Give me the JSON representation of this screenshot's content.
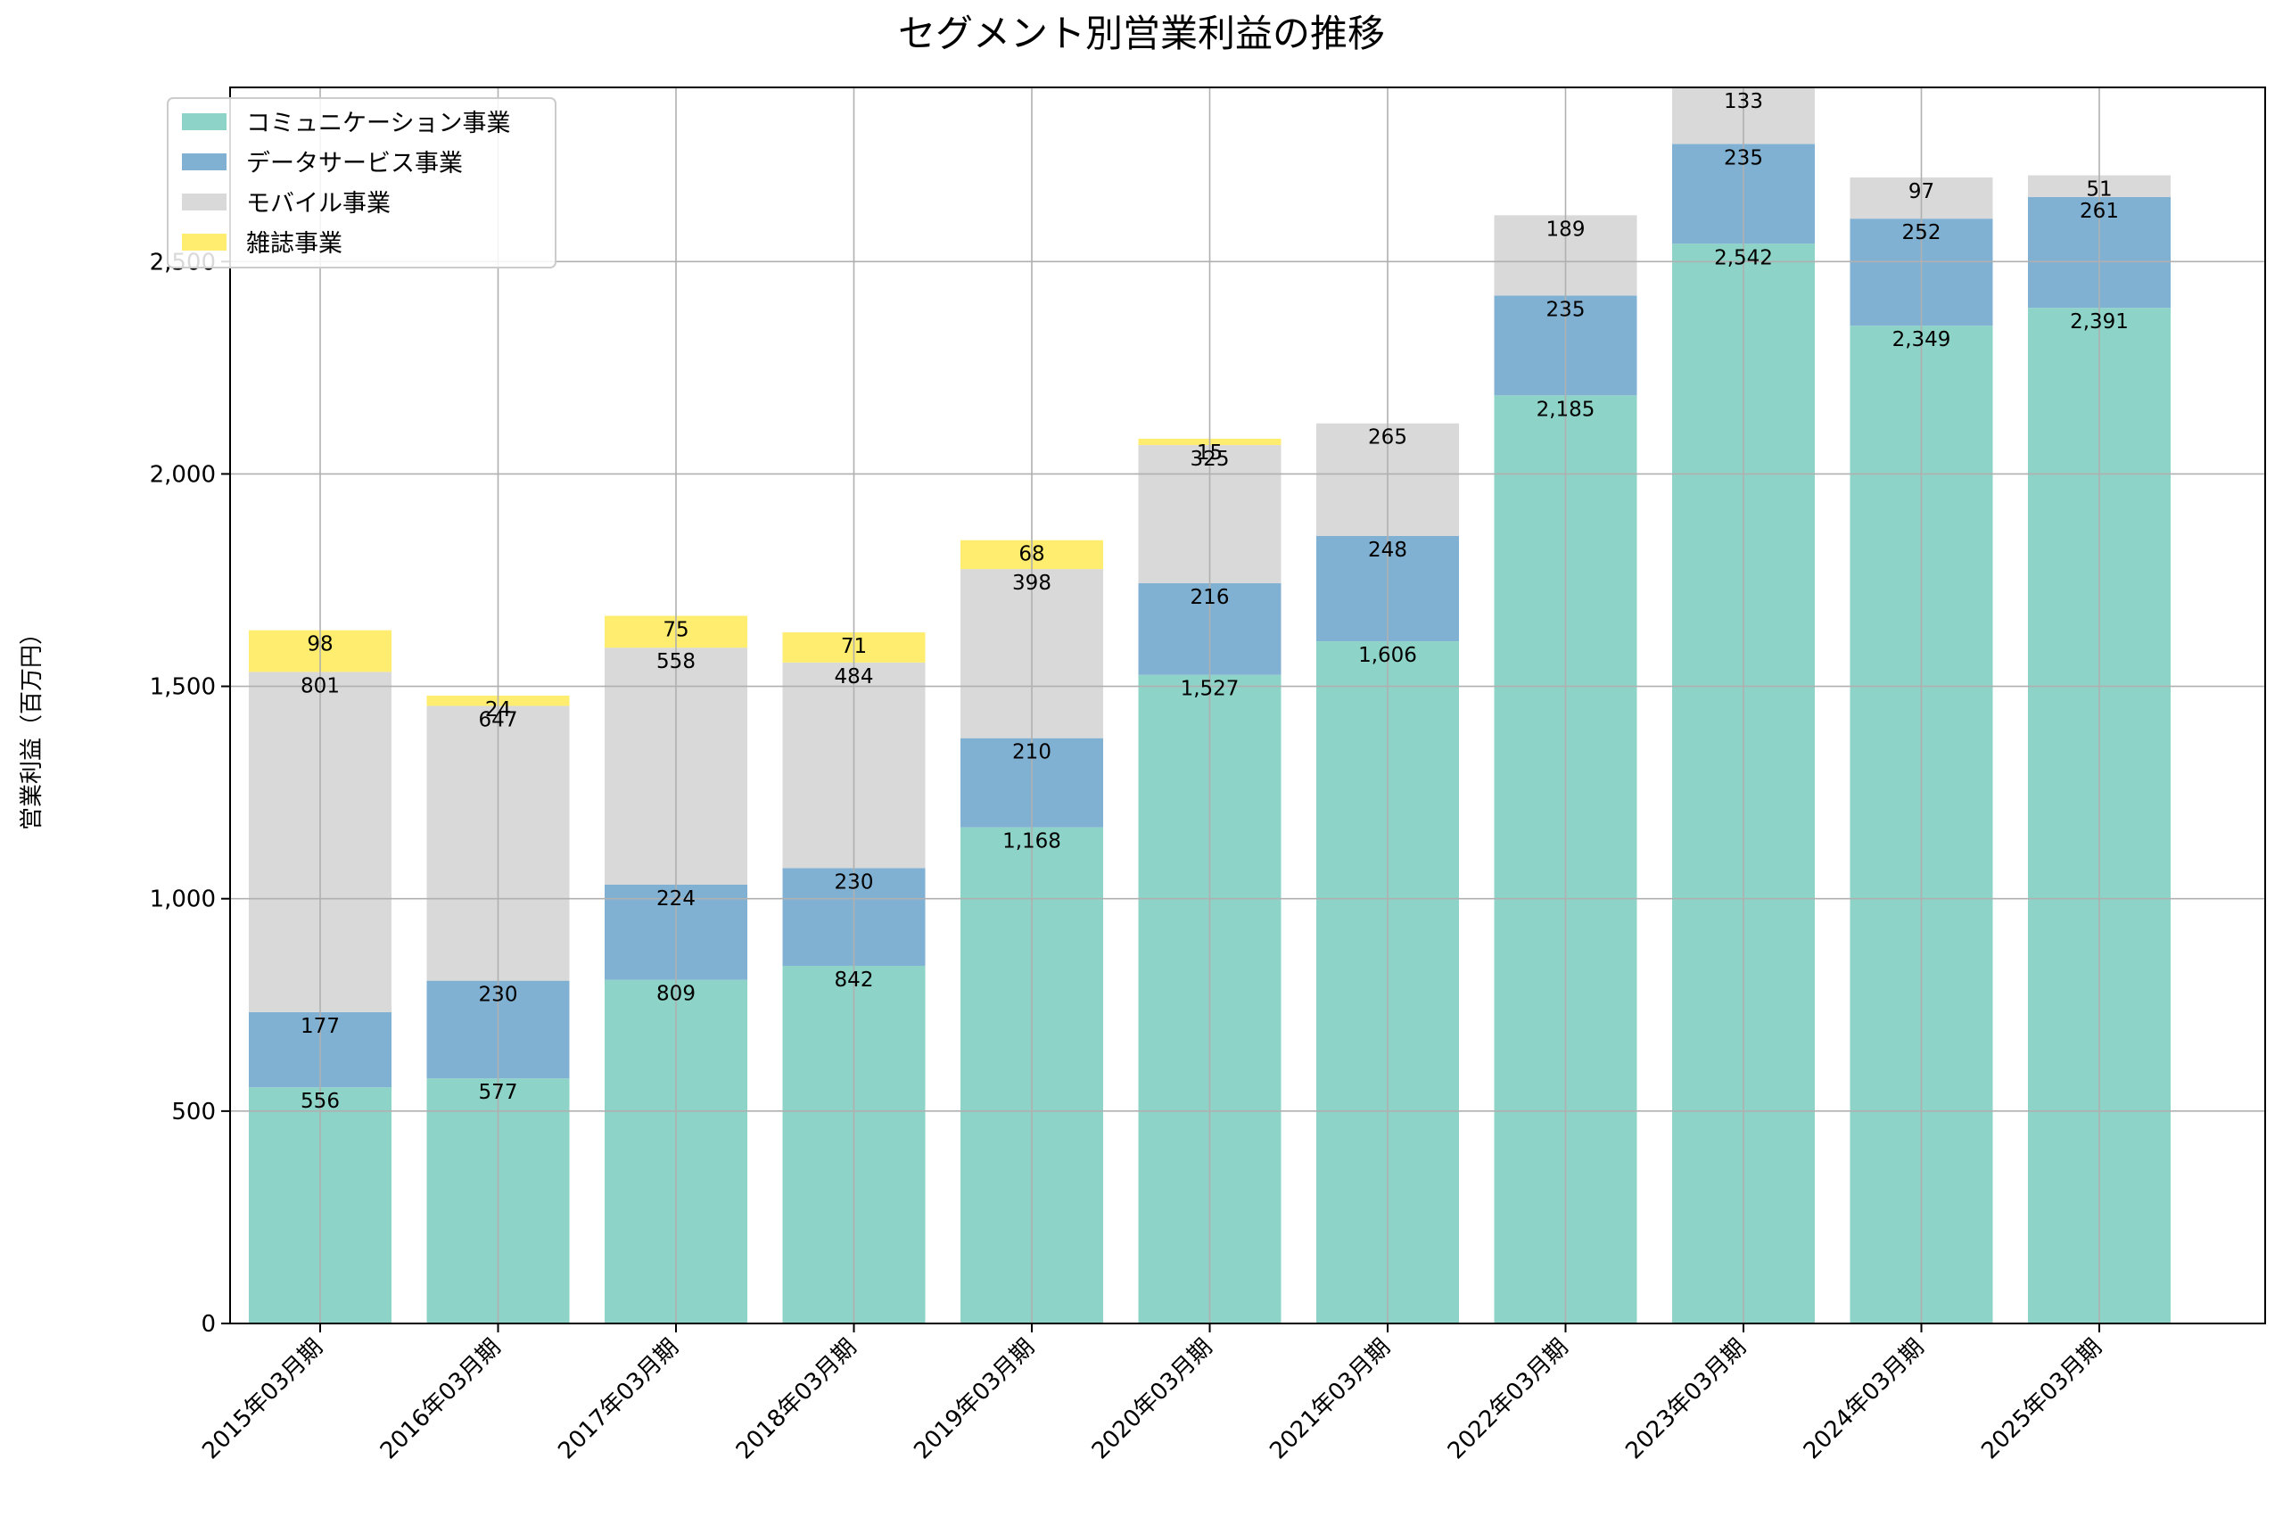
{
  "chart_data": {
    "type": "bar",
    "stacked": true,
    "title": "セグメント別営業利益の推移",
    "xlabel": "",
    "ylabel": "営業利益（百万円）",
    "ylim": [
      0,
      2910
    ],
    "yticks": [
      0,
      500,
      1000,
      1500,
      2000,
      2500
    ],
    "ytick_labels": [
      "0",
      "500",
      "1,000",
      "1,500",
      "2,000",
      "2,500"
    ],
    "grid": true,
    "legend_position": "top-left",
    "categories": [
      "2015年03月期",
      "2016年03月期",
      "2017年03月期",
      "2018年03月期",
      "2019年03月期",
      "2020年03月期",
      "2021年03月期",
      "2022年03月期",
      "2023年03月期",
      "2024年03月期",
      "2025年03月期"
    ],
    "series": [
      {
        "name": "コミュニケーション事業",
        "color": "#8dd3c7",
        "values": [
          556,
          577,
          809,
          842,
          1168,
          1527,
          1606,
          2185,
          2542,
          2349,
          2391
        ],
        "labels": [
          "556",
          "577",
          "809",
          "842",
          "1,168",
          "1,527",
          "1,606",
          "2,185",
          "2,542",
          "2,349",
          "2,391"
        ]
      },
      {
        "name": "データサービス事業",
        "color": "#80b1d3",
        "values": [
          177,
          230,
          224,
          230,
          210,
          216,
          248,
          235,
          235,
          252,
          261
        ],
        "labels": [
          "177",
          "230",
          "224",
          "230",
          "210",
          "216",
          "248",
          "235",
          "235",
          "252",
          "261"
        ]
      },
      {
        "name": "モバイル事業",
        "color": "#d9d9d9",
        "values": [
          801,
          647,
          558,
          484,
          398,
          325,
          265,
          189,
          133,
          97,
          51
        ],
        "labels": [
          "801",
          "647",
          "558",
          "484",
          "398",
          "325",
          "265",
          "189",
          "133",
          "97",
          "51"
        ]
      },
      {
        "name": "雑誌事業",
        "color": "#ffed6f",
        "values": [
          98,
          24,
          75,
          71,
          68,
          15,
          null,
          null,
          null,
          null,
          null
        ],
        "labels": [
          "98",
          "24",
          "75",
          "71",
          "68",
          "15",
          null,
          null,
          null,
          null,
          null
        ]
      }
    ]
  }
}
